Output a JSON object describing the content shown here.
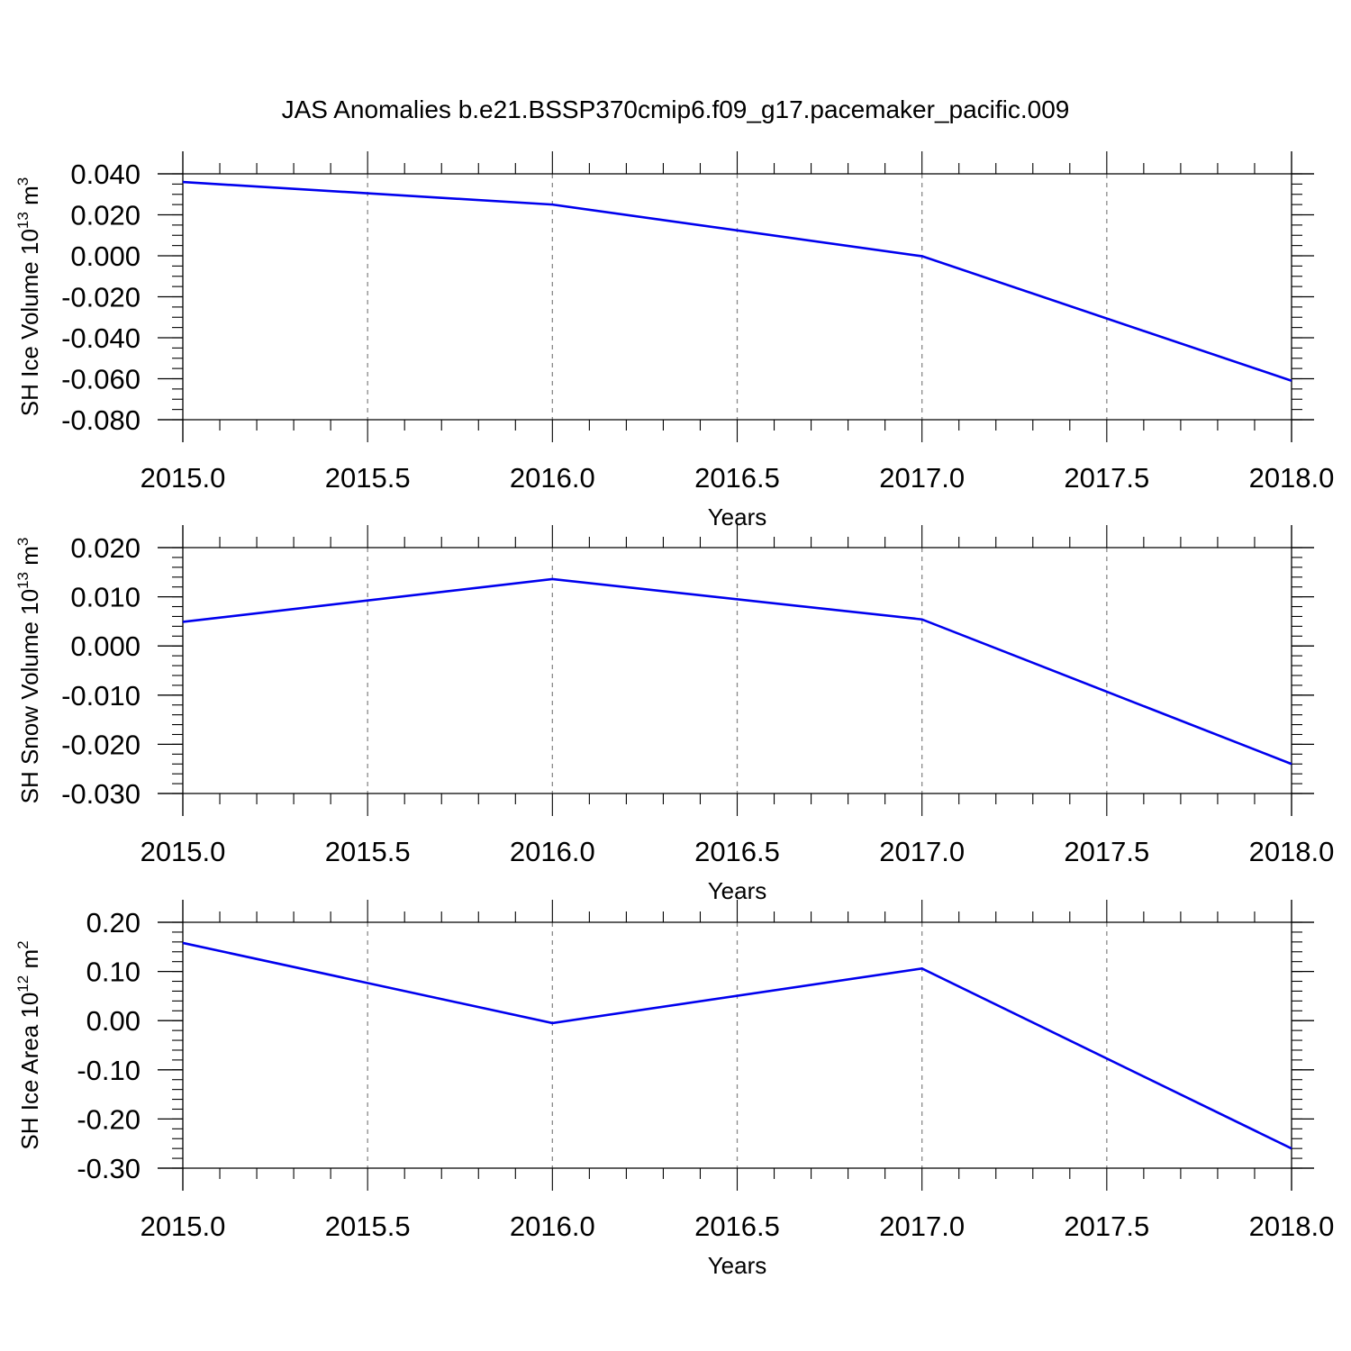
{
  "title": "JAS Anomalies b.e21.BSSP370cmip6.f09_g17.pacemaker_pacific.009",
  "chart_data": [
    {
      "type": "line",
      "title": "",
      "xlabel": "Years",
      "ylabel": {
        "base": "SH Ice Volume 10",
        "exp": "13",
        "unit": " m",
        "unit_exp": "3"
      },
      "xlim": [
        2015.0,
        2018.0
      ],
      "ylim": [
        -0.08,
        0.04
      ],
      "xticks": [
        "2015.0",
        "2015.5",
        "2016.0",
        "2016.5",
        "2017.0",
        "2017.5",
        "2018.0"
      ],
      "yticks": [
        "0.040",
        "0.020",
        "0.000",
        "-0.020",
        "-0.040",
        "-0.060",
        "-0.080"
      ],
      "ytick_values": [
        0.04,
        0.02,
        0.0,
        -0.02,
        -0.04,
        -0.06,
        -0.08
      ],
      "y_minor_step": 0.005,
      "grid": "vertical dashed",
      "series": [
        {
          "color": "#0000ee",
          "x": [
            2015,
            2016,
            2017,
            2018
          ],
          "values": [
            0.036,
            0.025,
            -0.0002,
            -0.061
          ]
        }
      ]
    },
    {
      "type": "line",
      "title": "",
      "xlabel": "Years",
      "ylabel": {
        "base": "SH Snow Volume 10",
        "exp": "13",
        "unit": " m",
        "unit_exp": "3"
      },
      "xlim": [
        2015.0,
        2018.0
      ],
      "ylim": [
        -0.03,
        0.02
      ],
      "xticks": [
        "2015.0",
        "2015.5",
        "2016.0",
        "2016.5",
        "2017.0",
        "2017.5",
        "2018.0"
      ],
      "yticks": [
        "0.020",
        "0.010",
        "0.000",
        "-0.010",
        "-0.020",
        "-0.030"
      ],
      "ytick_values": [
        0.02,
        0.01,
        0.0,
        -0.01,
        -0.02,
        -0.03
      ],
      "y_minor_step": 0.002,
      "grid": "vertical dashed",
      "series": [
        {
          "color": "#0000ee",
          "x": [
            2015,
            2016,
            2017,
            2018
          ],
          "values": [
            0.0049,
            0.0136,
            0.0054,
            -0.024
          ]
        }
      ]
    },
    {
      "type": "line",
      "title": "",
      "xlabel": "Years",
      "ylabel": {
        "base": "SH Ice Area 10",
        "exp": "12",
        "unit": " m",
        "unit_exp": "2"
      },
      "xlim": [
        2015.0,
        2018.0
      ],
      "ylim": [
        -0.3,
        0.2
      ],
      "xticks": [
        "2015.0",
        "2015.5",
        "2016.0",
        "2016.5",
        "2017.0",
        "2017.5",
        "2018.0"
      ],
      "yticks": [
        "0.20",
        "0.10",
        "0.00",
        "-0.10",
        "-0.20",
        "-0.30"
      ],
      "ytick_values": [
        0.2,
        0.1,
        0.0,
        -0.1,
        -0.2,
        -0.3
      ],
      "y_minor_step": 0.02,
      "grid": "vertical dashed",
      "series": [
        {
          "color": "#0000ee",
          "x": [
            2015,
            2016,
            2017,
            2018
          ],
          "values": [
            0.158,
            -0.005,
            0.106,
            -0.26
          ]
        }
      ]
    }
  ]
}
